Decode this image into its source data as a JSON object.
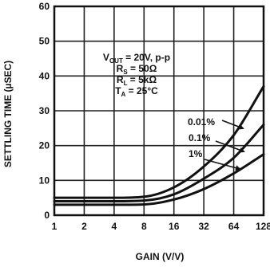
{
  "chart_data": {
    "type": "line",
    "title": "",
    "xlabel": "GAIN (V/V)",
    "ylabel": "SETTLING TIME (µSEC)",
    "x_scale": "log2",
    "x": [
      1,
      2,
      4,
      8,
      16,
      32,
      64,
      128
    ],
    "x_tick_labels": [
      "1",
      "2",
      "4",
      "8",
      "16",
      "32",
      "64",
      "128"
    ],
    "y_ticks": [
      0,
      10,
      20,
      30,
      40,
      50,
      60
    ],
    "xlim": [
      1,
      128
    ],
    "ylim": [
      0,
      60
    ],
    "grid": true,
    "series": [
      {
        "name": "0.01%",
        "values": [
          5,
          5,
          5,
          5.3,
          8,
          14,
          23,
          37
        ]
      },
      {
        "name": "0.1%",
        "values": [
          4,
          4,
          4,
          4.2,
          6,
          10.5,
          16.5,
          26
        ]
      },
      {
        "name": "1%",
        "values": [
          3,
          3,
          3,
          3.1,
          4.5,
          7.5,
          12,
          17.5
        ]
      }
    ],
    "conditions": [
      {
        "main": "V",
        "sub": "OUT",
        "rest": " = 20V, p-p"
      },
      {
        "main": "R",
        "sub": "S",
        "rest": " = 50Ω"
      },
      {
        "main": "R",
        "sub": "L",
        "rest": " = 5kΩ"
      },
      {
        "main": "T",
        "sub": "A",
        "rest": " = 25°C"
      }
    ]
  }
}
